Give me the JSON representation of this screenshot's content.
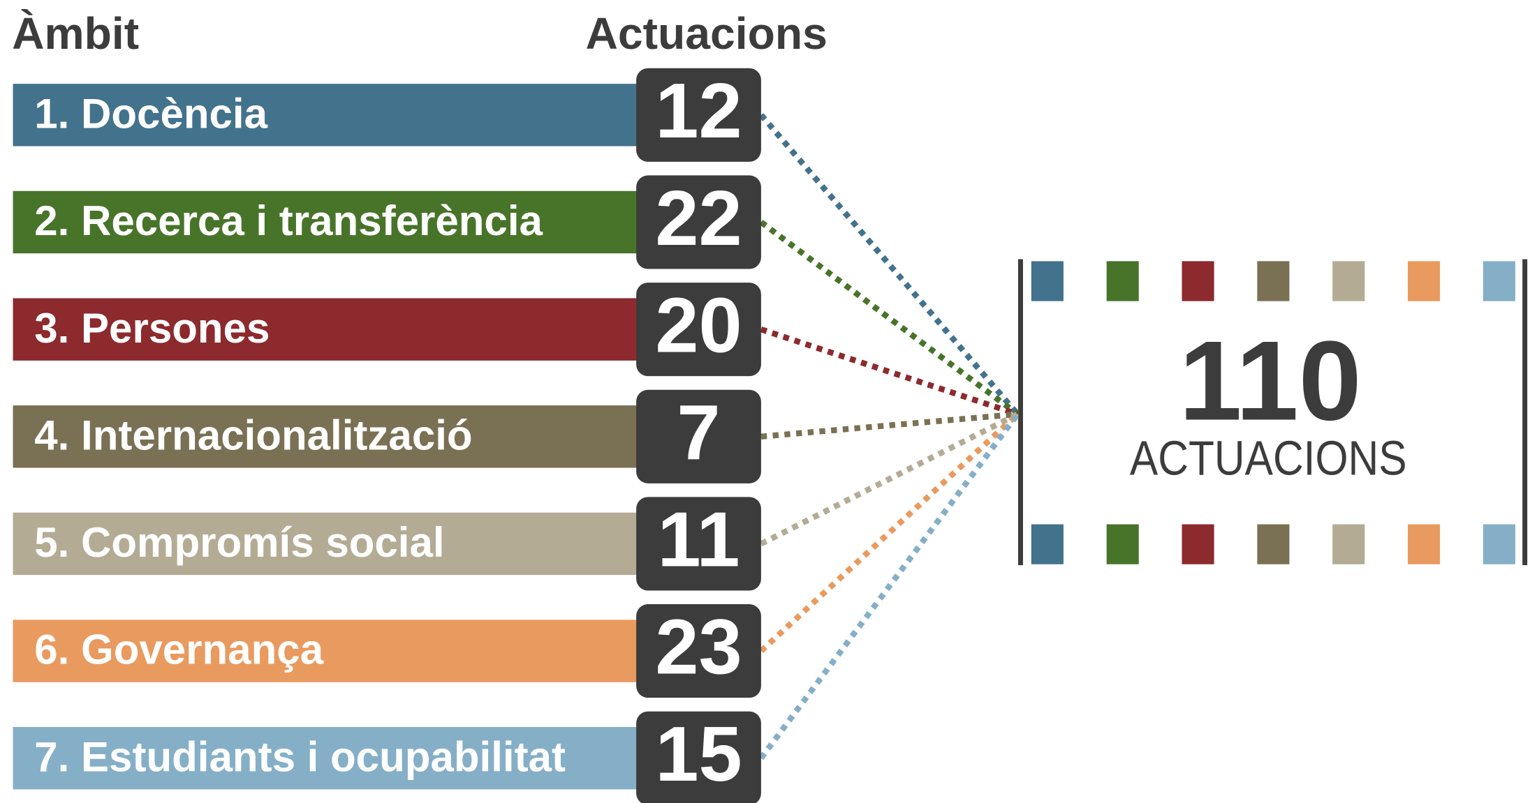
{
  "header": {
    "area": "Àmbit",
    "count": "Actuacions"
  },
  "rows": [
    {
      "label": "1. Docència",
      "count": 12,
      "color": "#43728c"
    },
    {
      "label": "2. Recerca i transferència",
      "count": 22,
      "color": "#48742a"
    },
    {
      "label": "3. Persones",
      "count": 20,
      "color": "#8c2a2d"
    },
    {
      "label": "4. Internacionalització",
      "count": 7,
      "color": "#7a7053"
    },
    {
      "label": "5. Compromís social",
      "count": 11,
      "color": "#b3ab94"
    },
    {
      "label": "6. Governança",
      "count": 23,
      "color": "#e99a5e"
    },
    {
      "label": "7. Estudiants i ocupabilitat",
      "count": 15,
      "color": "#85afc7"
    }
  ],
  "total": {
    "value": 110,
    "label": "ACTUACIONS"
  }
}
